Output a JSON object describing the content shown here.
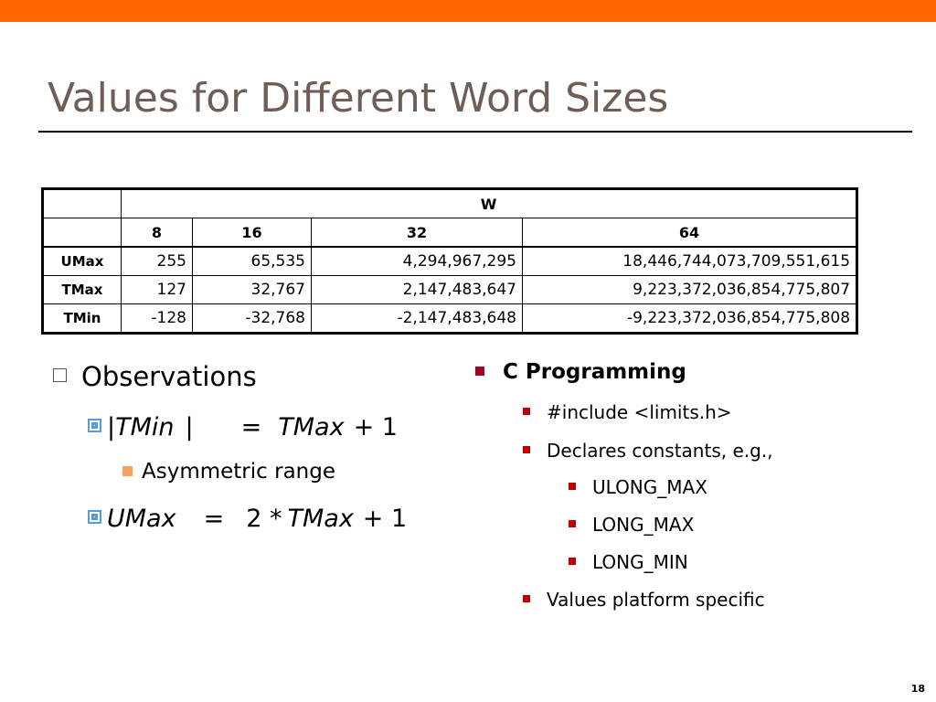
{
  "slide": {
    "title": "Values for Different Word Sizes",
    "page_number": "18",
    "accent_color": "#FF6600",
    "title_color": "#6E5E55"
  },
  "table": {
    "group_header": "W",
    "word_sizes": [
      "8",
      "16",
      "32",
      "64"
    ],
    "rows": [
      {
        "label": "UMax",
        "values": [
          "255",
          "65,535",
          "4,294,967,295",
          "18,446,744,073,709,551,615"
        ]
      },
      {
        "label": "TMax",
        "values": [
          "127",
          "32,767",
          "2,147,483,647",
          "9,223,372,036,854,775,807"
        ]
      },
      {
        "label": "TMin",
        "values": [
          "-128",
          "-32,768",
          "-2,147,483,648",
          "-9,223,372,036,854,775,808"
        ]
      }
    ]
  },
  "observations": {
    "heading": "Observations",
    "eq1": {
      "left_bar": "|",
      "left_var": "TMin",
      "right_bar": "|",
      "equals": "=",
      "right_var": "TMax",
      "tail": "+ 1"
    },
    "eq1_note": "Asymmetric range",
    "eq2": {
      "left_var": "UMax",
      "equals": "=",
      "middle": "2 *",
      "right_var": "TMax",
      "tail": "+ 1"
    }
  },
  "c_programming": {
    "heading": "C Programming",
    "items": [
      {
        "text": "#include <limits.h>"
      },
      {
        "text": "Declares constants, e.g.,"
      }
    ],
    "constants": [
      "ULONG_MAX",
      "LONG_MAX",
      "LONG_MIN"
    ],
    "last_item": "Values platform specific"
  }
}
